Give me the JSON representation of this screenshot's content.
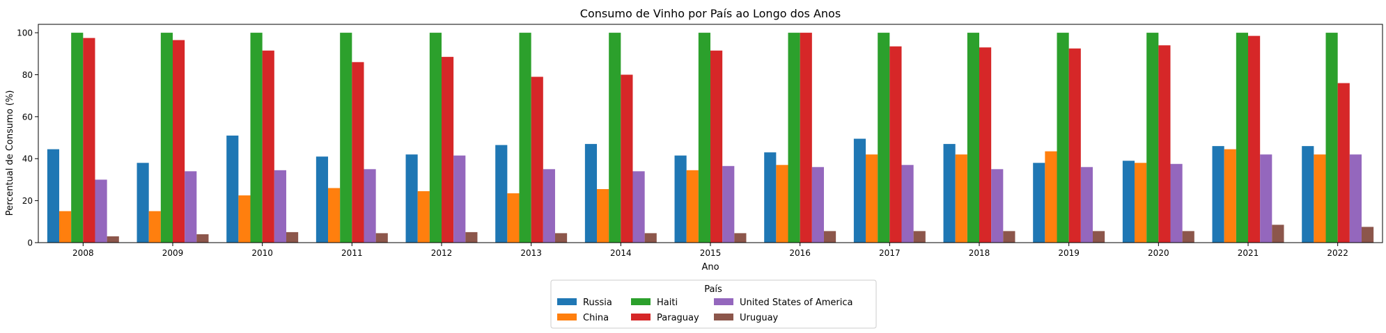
{
  "chart_data": {
    "type": "bar",
    "title": "Consumo de Vinho por País ao Longo dos Anos",
    "xlabel": "Ano",
    "ylabel": "Percentual de Consumo (%)",
    "ylim": [
      0,
      104
    ],
    "yticks": [
      0,
      20,
      40,
      60,
      80,
      100
    ],
    "grid": false,
    "legend_title": "País",
    "legend_position": "bottom-center, outside plot",
    "categories": [
      "2008",
      "2009",
      "2010",
      "2011",
      "2012",
      "2013",
      "2014",
      "2015",
      "2016",
      "2017",
      "2018",
      "2019",
      "2020",
      "2021",
      "2022"
    ],
    "series": [
      {
        "name": "Russia",
        "color": "#1f77b4",
        "values": [
          44.5,
          38,
          51,
          41,
          42,
          46.5,
          47,
          41.5,
          43,
          49.5,
          47,
          38,
          39,
          46,
          46
        ]
      },
      {
        "name": "China",
        "color": "#ff7f0e",
        "values": [
          15,
          15,
          22.5,
          26,
          24.5,
          23.5,
          25.5,
          34.5,
          37,
          42,
          42,
          43.5,
          38,
          44.5,
          42
        ]
      },
      {
        "name": "Haiti",
        "color": "#2ca02c",
        "values": [
          100,
          100,
          100,
          100,
          100,
          100,
          100,
          100,
          100,
          100,
          100,
          100,
          100,
          100,
          100
        ]
      },
      {
        "name": "Paraguay",
        "color": "#d62728",
        "values": [
          97.5,
          96.5,
          91.5,
          86,
          88.5,
          79,
          80,
          91.5,
          100,
          93.5,
          93,
          92.5,
          94,
          98.5,
          76
        ]
      },
      {
        "name": "United States of America",
        "color": "#9467bd",
        "values": [
          30,
          34,
          34.5,
          35,
          41.5,
          35,
          34,
          36.5,
          36,
          37,
          35,
          36,
          37.5,
          42,
          42
        ]
      },
      {
        "name": "Uruguay",
        "color": "#8c564b",
        "values": [
          3,
          4,
          5,
          4.5,
          5,
          4.5,
          4.5,
          4.5,
          5.5,
          5.5,
          5.5,
          5.5,
          5.5,
          8.5,
          7.5
        ]
      }
    ]
  }
}
